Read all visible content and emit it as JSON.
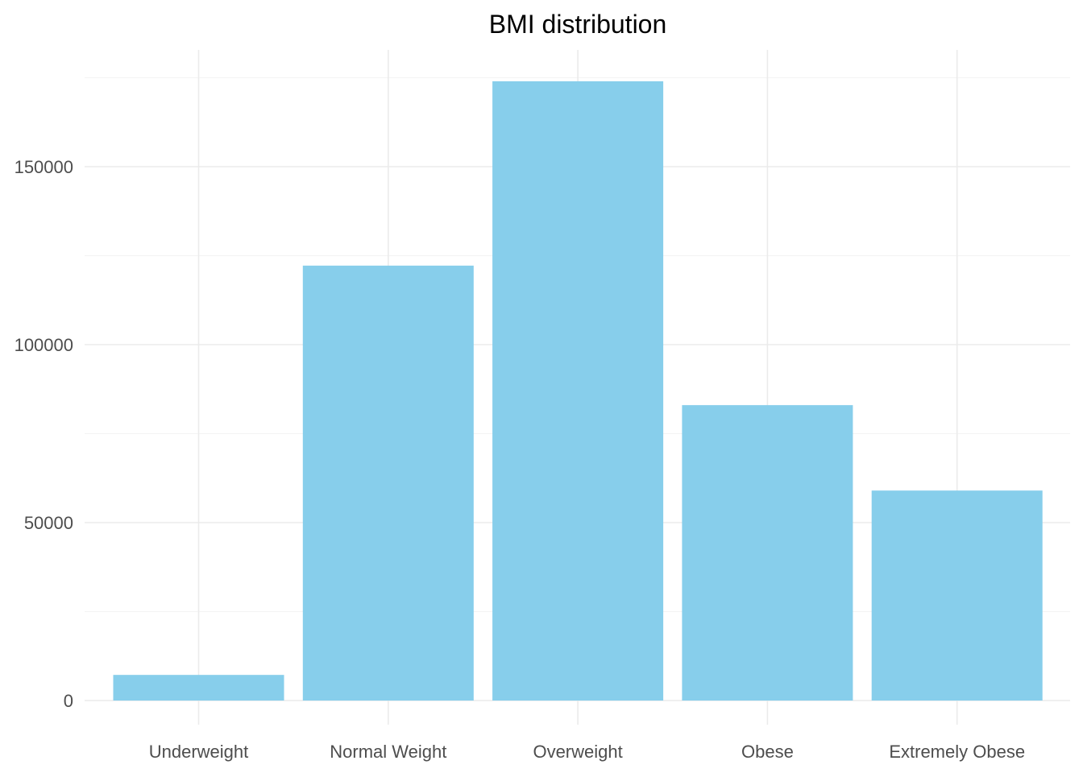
{
  "chart_data": {
    "type": "bar",
    "title": "BMI distribution",
    "xlabel": "",
    "ylabel": "",
    "categories": [
      "Underweight",
      "Normal Weight",
      "Overweight",
      "Obese",
      "Extremely Obese"
    ],
    "values": [
      7200,
      122200,
      174000,
      83000,
      59000
    ],
    "ylim": [
      0,
      175000
    ],
    "yticks": [
      0,
      50000,
      100000,
      150000
    ],
    "grid": true,
    "colors": {
      "bar": "#87CEEB",
      "grid_major": "#ebebeb",
      "grid_minor": "#f4f4f4",
      "tick_text": "#4d4d4d",
      "title": "#000000"
    }
  }
}
